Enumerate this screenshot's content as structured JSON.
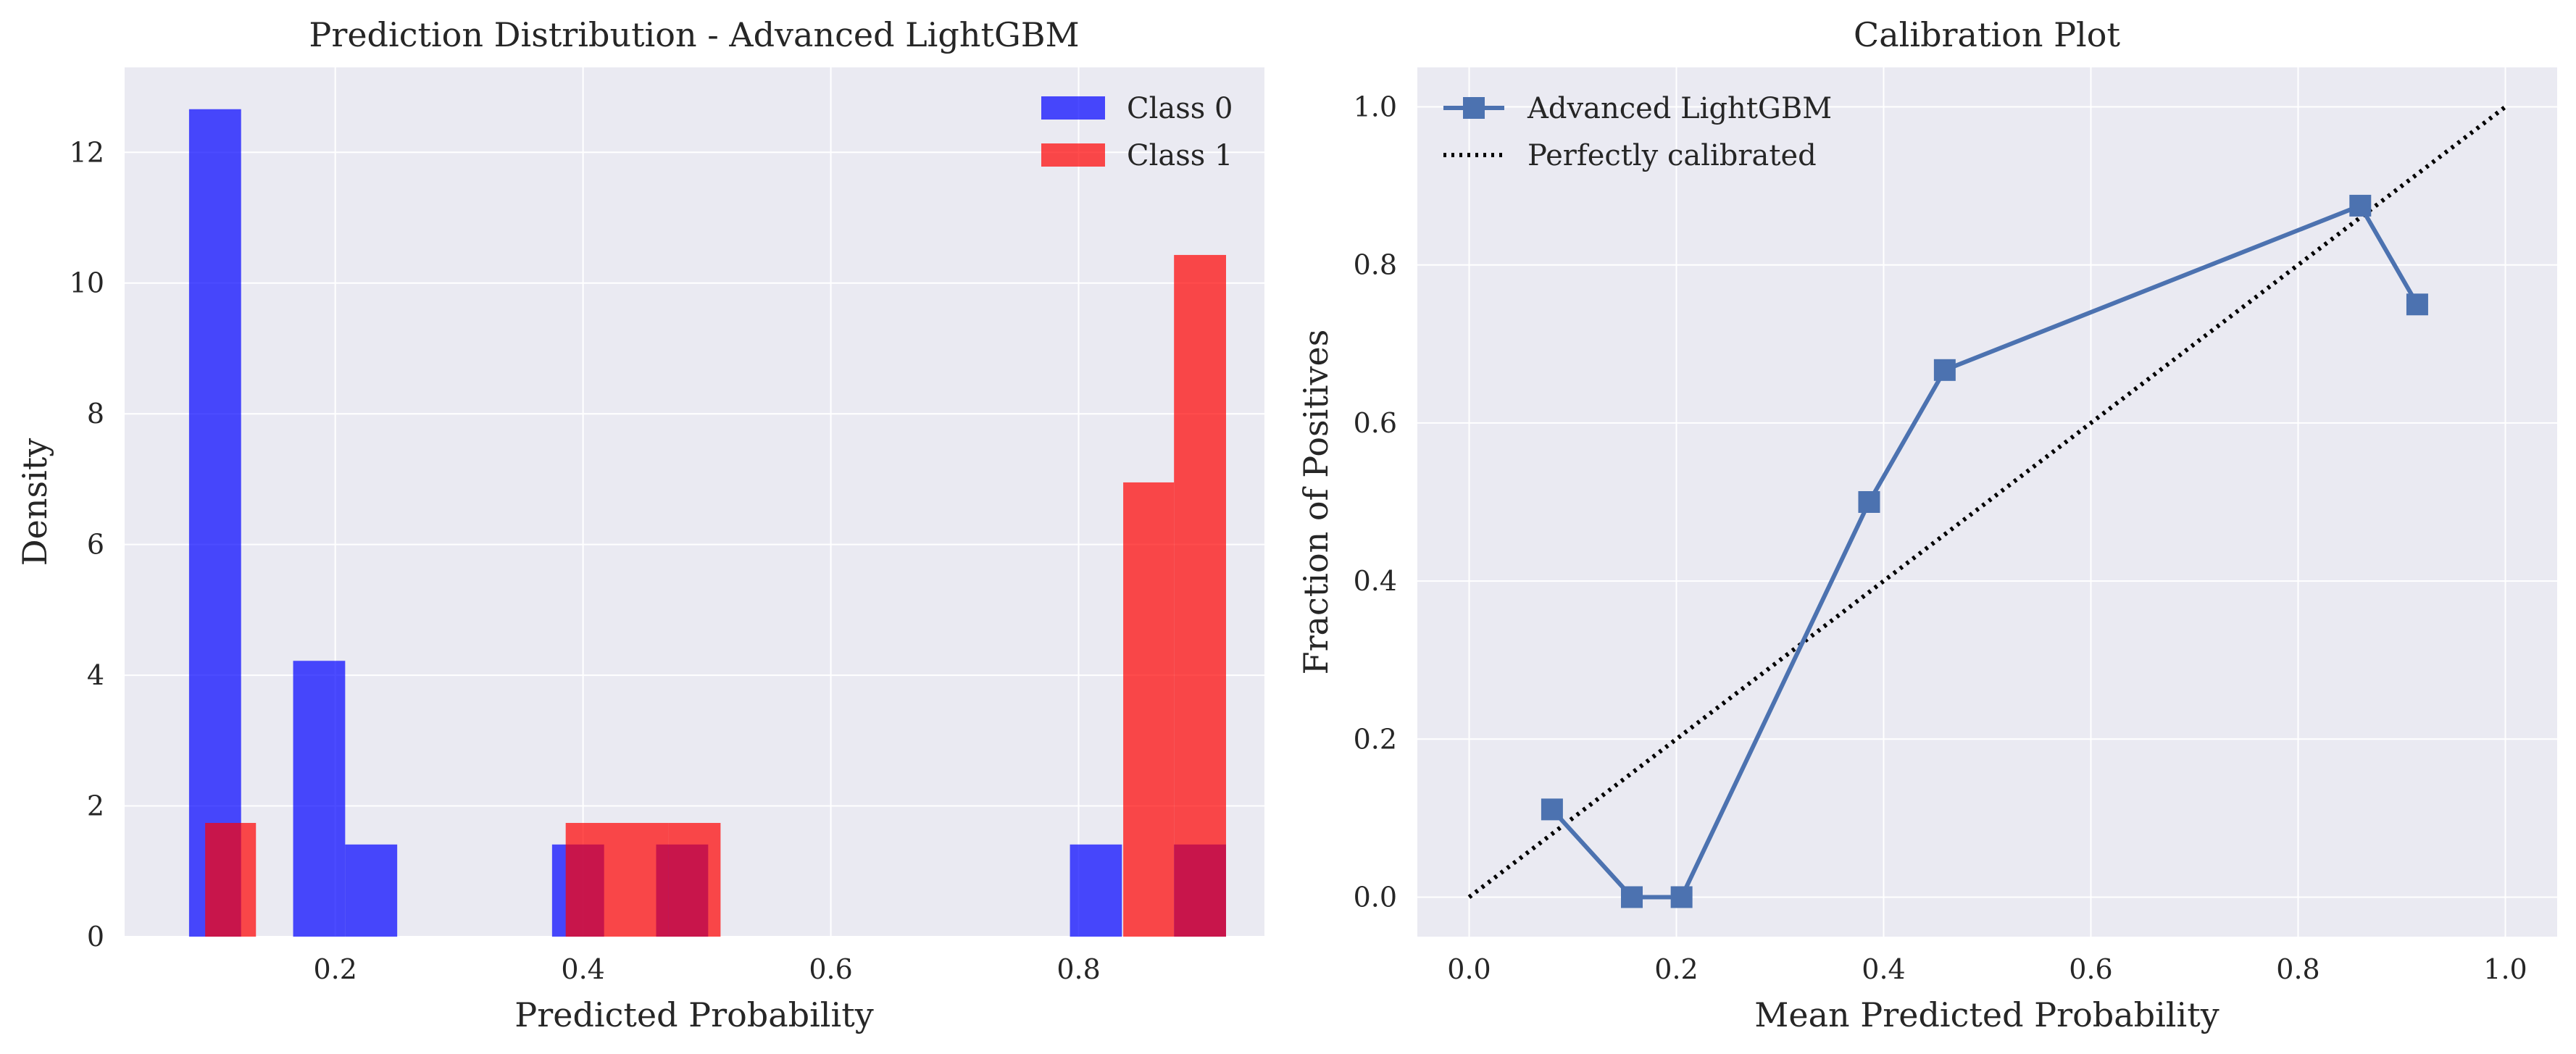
{
  "chart_data": [
    {
      "type": "histogram",
      "title": "Prediction Distribution - Advanced LightGBM",
      "xlabel": "Predicted Probability",
      "ylabel": "Density",
      "xlim": [
        0.03,
        0.95
      ],
      "ylim": [
        0,
        13.3
      ],
      "xticks": [
        "0.2",
        "0.4",
        "0.6",
        "0.8"
      ],
      "yticks": [
        "0",
        "2",
        "4",
        "6",
        "8",
        "10",
        "12"
      ],
      "grid": true,
      "legend": "top-right",
      "series": [
        {
          "name": "Class 0",
          "color": "#0000ff",
          "bins": [
            {
              "x0": 0.082,
              "x1": 0.124,
              "value": 12.66
            },
            {
              "x0": 0.166,
              "x1": 0.208,
              "value": 4.22
            },
            {
              "x0": 0.208,
              "x1": 0.25,
              "value": 1.41
            },
            {
              "x0": 0.375,
              "x1": 0.417,
              "value": 1.41
            },
            {
              "x0": 0.459,
              "x1": 0.501,
              "value": 1.41
            },
            {
              "x0": 0.793,
              "x1": 0.835,
              "value": 1.41
            },
            {
              "x0": 0.877,
              "x1": 0.919,
              "value": 1.41
            }
          ]
        },
        {
          "name": "Class 1",
          "color": "#ff0000",
          "bins": [
            {
              "x0": 0.095,
              "x1": 0.136,
              "value": 1.74
            },
            {
              "x0": 0.386,
              "x1": 0.428,
              "value": 1.74
            },
            {
              "x0": 0.428,
              "x1": 0.469,
              "value": 1.74
            },
            {
              "x0": 0.469,
              "x1": 0.511,
              "value": 1.74
            },
            {
              "x0": 0.836,
              "x1": 0.877,
              "value": 6.95
            },
            {
              "x0": 0.877,
              "x1": 0.919,
              "value": 10.43
            }
          ]
        }
      ]
    },
    {
      "type": "line",
      "title": "Calibration Plot",
      "xlabel": "Mean Predicted Probability",
      "ylabel": "Fraction of Positives",
      "xlim": [
        -0.05,
        1.05
      ],
      "ylim": [
        -0.05,
        1.05
      ],
      "xticks": [
        "0.0",
        "0.2",
        "0.4",
        "0.6",
        "0.8",
        "1.0"
      ],
      "yticks": [
        "0.0",
        "0.2",
        "0.4",
        "0.6",
        "0.8",
        "1.0"
      ],
      "grid": true,
      "legend": "top-left",
      "series": [
        {
          "name": "Advanced LightGBM",
          "color": "#4c72b0",
          "marker": "square",
          "x": [
            0.08,
            0.157,
            0.205,
            0.386,
            0.459,
            0.86,
            0.915
          ],
          "y": [
            0.111,
            0.0,
            0.0,
            0.5,
            0.667,
            0.875,
            0.75
          ]
        },
        {
          "name": "Perfectly calibrated",
          "color": "#000000",
          "style": "dotted",
          "x": [
            0,
            1
          ],
          "y": [
            0,
            1
          ]
        }
      ]
    }
  ]
}
